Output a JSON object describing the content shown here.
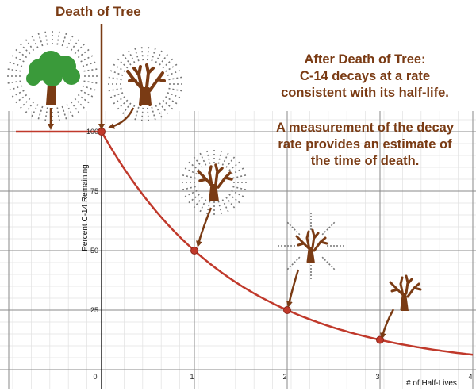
{
  "title": "Death of Tree",
  "annotation": {
    "line1": "After Death of Tree:",
    "line2": "C-14 decays at a rate",
    "line3": "consistent with its half-life.",
    "line4": "A measurement of the decay",
    "line5": "rate provides an estimate of",
    "line6": "the time of death."
  },
  "colors": {
    "curve": "#c0392b",
    "point": "#c0392b",
    "text": "#7a3b14",
    "leaves": "#3a9a3a",
    "trunk": "#7a3b14",
    "grid": "#bdbdbd"
  },
  "icons": [
    "living-tree-icon",
    "dead-tree-icon",
    "down-arrow-icon",
    "curved-arrow-icon",
    "radiation-rays-icon"
  ],
  "chart_data": {
    "type": "line",
    "xlabel": "# of Half-Lives",
    "ylabel": "Percent C-14 Remaining",
    "xlim": [
      -1,
      4
    ],
    "ylim": [
      -5,
      100
    ],
    "x_ticks": [
      "0",
      "1",
      "2",
      "3",
      "4"
    ],
    "y_ticks": [
      "100",
      "75",
      "50",
      "25"
    ],
    "points": [
      {
        "x": 0,
        "y": 100
      },
      {
        "x": 1,
        "y": 50
      },
      {
        "x": 2,
        "y": 25
      },
      {
        "x": 3,
        "y": 12.5
      }
    ],
    "pre_death_level": 100,
    "grid": true
  }
}
